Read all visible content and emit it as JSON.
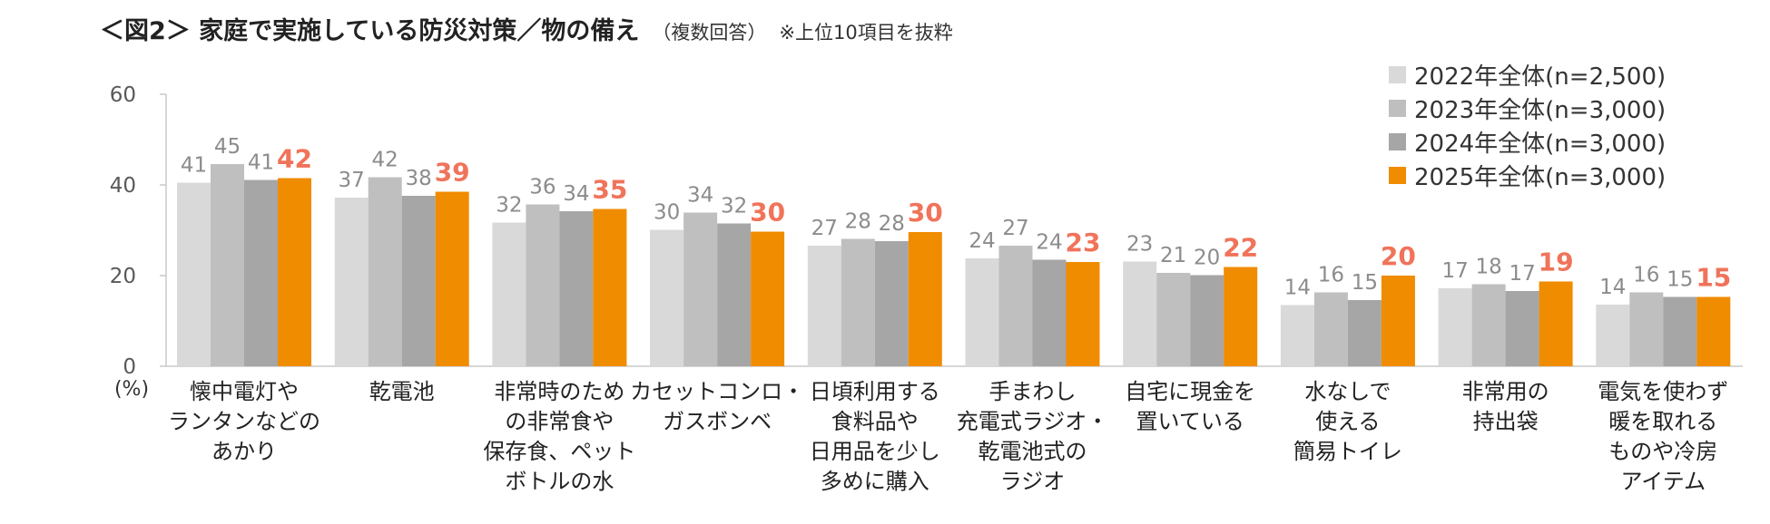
{
  "header": {
    "title": "＜図2＞ 家庭で実施している防災対策／物の備え",
    "subtitle": "（複数回答）",
    "note": "※上位10項目を抜粋"
  },
  "chart_data": {
    "type": "bar",
    "title": "＜図2＞ 家庭で実施している防災対策／物の備え",
    "ylabel": "(%)",
    "ylim": [
      0,
      60
    ],
    "yticks": [
      "0",
      "20",
      "40",
      "60"
    ],
    "grid": false,
    "legend_position": "top-right",
    "categories": [
      "懐中電灯やランタンなどのあかり",
      "乾電池",
      "非常時のための非常食や保存食、ペットボトルの水",
      "カセットコンロ・ガスボンベ",
      "日頃利用する食料品や日用品を少し多めに購入",
      "手まわし充電式ラジオ・乾電池式のラジオ",
      "自宅に現金を置いている",
      "水なしで使える簡易トイレ",
      "非常用の持出袋",
      "電気を使わず暖を取れるものや冷房アイテム"
    ],
    "category_lines": [
      [
        "懐中電灯や",
        "ランタンなどの",
        "あかり"
      ],
      [
        "乾電池"
      ],
      [
        "非常時のため",
        "の非常食や",
        "保存食、ペット",
        "ボトルの水"
      ],
      [
        "カセットコンロ・",
        "ガスボンベ"
      ],
      [
        "日頃利用する",
        "食料品や",
        "日用品を少し",
        "多めに購入"
      ],
      [
        "手まわし",
        "充電式ラジオ・",
        "乾電池式の",
        "ラジオ"
      ],
      [
        "自宅に現金を",
        "置いている"
      ],
      [
        "水なしで",
        "使える",
        "簡易トイレ"
      ],
      [
        "非常用の",
        "持出袋"
      ],
      [
        "電気を使わず",
        "暖を取れる",
        "ものや冷房",
        "アイテム"
      ]
    ],
    "series": [
      {
        "name": "2022年全体(n=2,500)",
        "color": "#d9d9d9",
        "label_color": "#8c8c8c",
        "highlight": false,
        "values": [
          40.5,
          37.2,
          31.7,
          30.1,
          26.6,
          23.8,
          23.1,
          13.5,
          17.2,
          13.6
        ],
        "labels": [
          "41",
          "37",
          "32",
          "30",
          "27",
          "24",
          "23",
          "14",
          "17",
          "14"
        ]
      },
      {
        "name": "2023年全体(n=3,000)",
        "color": "#bfbfbf",
        "label_color": "#8c8c8c",
        "highlight": false,
        "values": [
          44.6,
          41.7,
          35.7,
          33.9,
          28.1,
          26.6,
          20.6,
          16.3,
          18.1,
          16.3
        ],
        "labels": [
          "45",
          "42",
          "36",
          "34",
          "28",
          "27",
          "21",
          "16",
          "18",
          "16"
        ]
      },
      {
        "name": "2024年全体(n=3,000)",
        "color": "#a6a6a6",
        "label_color": "#8c8c8c",
        "highlight": false,
        "values": [
          41.1,
          37.6,
          34.2,
          31.5,
          27.6,
          23.5,
          20.1,
          14.6,
          16.6,
          15.3
        ],
        "labels": [
          "41",
          "38",
          "34",
          "32",
          "28",
          "24",
          "20",
          "15",
          "17",
          "15"
        ]
      },
      {
        "name": "2025年全体(n=3,000)",
        "color": "#f08c00",
        "label_color": "#f0735a",
        "highlight": true,
        "values": [
          41.5,
          38.5,
          34.7,
          29.7,
          29.6,
          23.0,
          21.9,
          20.0,
          18.7,
          15.3
        ],
        "labels": [
          "42",
          "39",
          "35",
          "30",
          "30",
          "23",
          "22",
          "20",
          "19",
          "15"
        ]
      }
    ]
  }
}
